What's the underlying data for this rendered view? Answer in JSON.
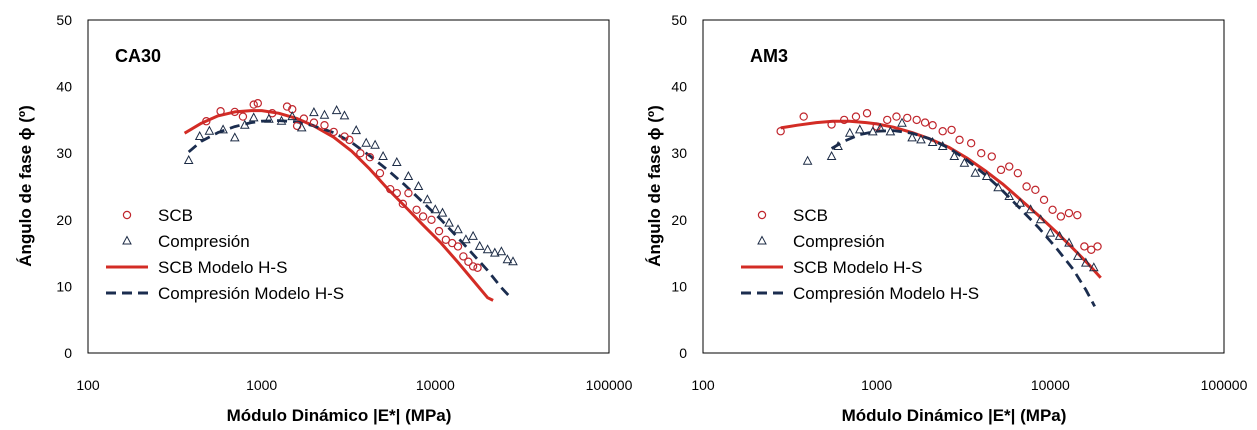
{
  "chart_data": [
    {
      "type": "scatter",
      "panel_label": "CA30",
      "xlabel": "Módulo Dinámico |E*| (MPa)",
      "ylabel": "Ángulo de fase  ϕ (º)",
      "xscale": "log",
      "xlim": [
        100,
        100000
      ],
      "ylim": [
        0,
        50
      ],
      "xticks": [
        "100",
        "1000",
        "10000",
        "100000"
      ],
      "yticks": [
        "0",
        "10",
        "20",
        "30",
        "40",
        "50"
      ],
      "grid": false,
      "legend_position": "left",
      "series": [
        {
          "name": "SCB",
          "kind": "points",
          "marker": "circle",
          "color": "#c0262d",
          "x": [
            480,
            580,
            700,
            780,
            900,
            950,
            1150,
            1400,
            1500,
            1600,
            1750,
            2000,
            2300,
            2600,
            3000,
            3200,
            3700,
            4200,
            4800,
            5500,
            6000,
            6500,
            7000,
            7800,
            8500,
            9500,
            10500,
            11500,
            12500,
            13500,
            14500,
            15500,
            16500,
            17500
          ],
          "y": [
            34.8,
            36.3,
            36.2,
            35.5,
            37.3,
            37.5,
            36.0,
            37.0,
            36.6,
            34.1,
            35.2,
            34.6,
            34.2,
            33.2,
            32.5,
            32.0,
            30.0,
            29.4,
            27.0,
            24.6,
            24.0,
            22.4,
            24.0,
            21.5,
            20.5,
            20.0,
            18.3,
            17.0,
            16.5,
            16.0,
            14.5,
            13.7,
            13.0,
            12.8
          ]
        },
        {
          "name": "Compresión",
          "kind": "points",
          "marker": "triangle",
          "color": "#1c2b45",
          "x": [
            380,
            440,
            500,
            600,
            700,
            800,
            900,
            1100,
            1300,
            1500,
            1700,
            2000,
            2300,
            2700,
            3000,
            3500,
            4000,
            4500,
            5000,
            6000,
            7000,
            8000,
            9000,
            10000,
            11000,
            12000,
            13500,
            15000,
            16500,
            18000,
            20000,
            22000,
            24000,
            26000,
            28000
          ],
          "y": [
            28.9,
            32.5,
            33.3,
            33.5,
            32.3,
            34.2,
            35.3,
            35.1,
            34.8,
            35.5,
            33.8,
            36.1,
            35.7,
            36.4,
            35.6,
            33.4,
            31.5,
            31.2,
            29.5,
            28.6,
            26.5,
            25.0,
            23.0,
            21.5,
            21.0,
            19.5,
            18.5,
            17.0,
            17.5,
            16.0,
            15.5,
            15.0,
            15.2,
            14.0,
            13.7
          ]
        },
        {
          "name": "SCB Modelo H-S",
          "kind": "line",
          "dash": "solid",
          "color": "#d32c25",
          "x": [
            360,
            450,
            560,
            700,
            870,
            1000,
            1250,
            1600,
            2000,
            2600,
            3300,
            4200,
            5300,
            6700,
            8500,
            10800,
            13500,
            16500,
            20000,
            21500
          ],
          "y": [
            33.0,
            34.5,
            35.6,
            36.2,
            36.4,
            36.4,
            36.0,
            35.2,
            34.1,
            32.4,
            30.3,
            27.6,
            24.7,
            22.0,
            19.2,
            16.5,
            13.6,
            10.9,
            8.3,
            7.9
          ]
        },
        {
          "name": "Compresión Modelo H-S",
          "kind": "line",
          "dash": "dashed",
          "color": "#1b2d4f",
          "x": [
            380,
            450,
            560,
            700,
            870,
            1000,
            1250,
            1600,
            2000,
            2600,
            3300,
            4200,
            5300,
            6700,
            8500,
            10800,
            13500,
            16500,
            20000,
            24000,
            27000
          ],
          "y": [
            30.2,
            31.8,
            33.1,
            34.0,
            34.6,
            34.8,
            34.9,
            34.7,
            34.1,
            33.1,
            31.6,
            29.6,
            27.5,
            25.2,
            22.6,
            20.0,
            17.3,
            14.8,
            12.4,
            9.8,
            8.4
          ]
        }
      ]
    },
    {
      "type": "scatter",
      "panel_label": "AM3",
      "xlabel": "Módulo Dinámico |E*| (MPa)",
      "ylabel": "Ángulo de fase  ϕ (º)",
      "xscale": "log",
      "xlim": [
        100,
        100000
      ],
      "ylim": [
        0,
        50
      ],
      "xticks": [
        "100",
        "1000",
        "10000",
        "100000"
      ],
      "yticks": [
        "0",
        "10",
        "20",
        "30",
        "40",
        "50"
      ],
      "grid": false,
      "legend_position": "left",
      "series": [
        {
          "name": "SCB",
          "kind": "points",
          "marker": "circle",
          "color": "#c0262d",
          "x": [
            280,
            380,
            550,
            650,
            760,
            880,
            1000,
            1150,
            1300,
            1500,
            1700,
            1900,
            2100,
            2400,
            2700,
            3000,
            3500,
            4000,
            4600,
            5200,
            5800,
            6500,
            7300,
            8200,
            9200,
            10300,
            11500,
            12800,
            14300,
            15700,
            17200,
            18700
          ],
          "y": [
            33.3,
            35.5,
            34.3,
            35.0,
            35.5,
            36.0,
            34.0,
            35.0,
            35.5,
            35.3,
            35.0,
            34.6,
            34.2,
            33.3,
            33.5,
            32.0,
            31.5,
            30.0,
            29.5,
            27.5,
            28.0,
            27.0,
            25.0,
            24.5,
            23.0,
            21.5,
            20.5,
            21.0,
            20.7,
            16.0,
            15.5,
            16.0
          ]
        },
        {
          "name": "Compresión",
          "kind": "points",
          "marker": "triangle",
          "color": "#1c2b45",
          "x": [
            400,
            550,
            600,
            700,
            800,
            950,
            1050,
            1200,
            1400,
            1600,
            1800,
            2100,
            2400,
            2800,
            3200,
            3700,
            4300,
            5000,
            5800,
            6700,
            7700,
            8800,
            10000,
            11300,
            12800,
            14400,
            16000,
            17800
          ],
          "y": [
            28.8,
            29.5,
            31.0,
            33.0,
            33.5,
            33.2,
            33.7,
            33.2,
            34.5,
            32.3,
            32.0,
            31.6,
            31.0,
            29.5,
            28.5,
            27.0,
            26.5,
            24.8,
            23.5,
            22.5,
            21.5,
            20.0,
            18.0,
            17.5,
            16.5,
            14.5,
            13.5,
            12.8
          ]
        },
        {
          "name": "SCB Modelo H-S",
          "kind": "line",
          "dash": "solid",
          "color": "#d32c25",
          "x": [
            280,
            350,
            450,
            560,
            700,
            870,
            1000,
            1250,
            1600,
            2000,
            2600,
            3300,
            4200,
            5300,
            6700,
            8500,
            10800,
            13500,
            16500,
            19500
          ],
          "y": [
            33.8,
            34.2,
            34.6,
            34.8,
            34.8,
            34.6,
            34.4,
            33.9,
            33.1,
            32.2,
            30.9,
            29.3,
            27.4,
            25.4,
            23.1,
            20.7,
            18.2,
            15.7,
            13.4,
            11.3
          ]
        },
        {
          "name": "Compresión Modelo H-S",
          "kind": "line",
          "dash": "dashed",
          "color": "#1b2d4f",
          "x": [
            550,
            650,
            800,
            1000,
            1250,
            1600,
            2000,
            2600,
            3300,
            4200,
            5300,
            6700,
            8500,
            10800,
            13500,
            16000,
            18000
          ],
          "y": [
            30.7,
            31.8,
            32.8,
            33.3,
            33.4,
            33.0,
            32.2,
            30.8,
            29.0,
            26.8,
            24.4,
            21.7,
            18.9,
            15.8,
            12.6,
            9.5,
            7.0
          ]
        }
      ]
    }
  ]
}
